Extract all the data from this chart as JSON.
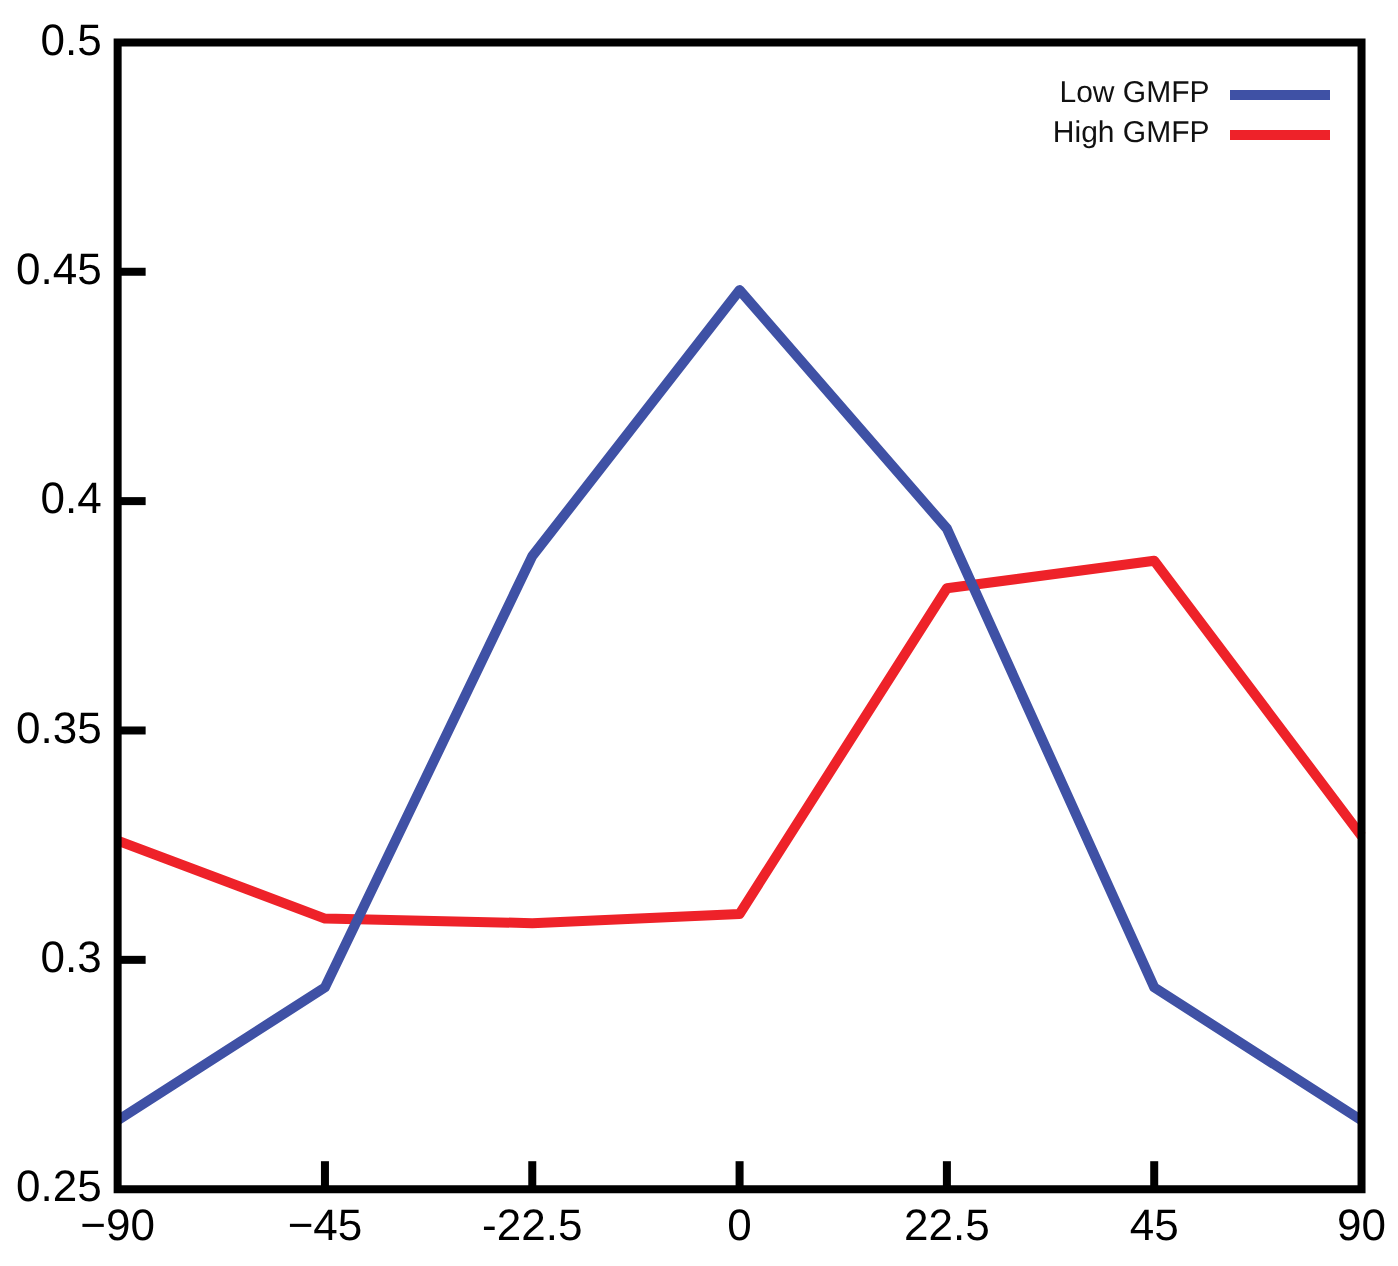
{
  "chart_data": {
    "type": "line",
    "categories": [
      "−90",
      "−45",
      "-22.5",
      "0",
      "22.5",
      "45",
      "90"
    ],
    "series": [
      {
        "name": "Low GMFP",
        "color": "#3f51a5",
        "values": [
          0.265,
          0.294,
          0.388,
          0.446,
          0.394,
          0.294,
          0.265
        ]
      },
      {
        "name": "High GMFP",
        "color": "#ee2229",
        "values": [
          0.326,
          0.309,
          0.308,
          0.31,
          0.381,
          0.387,
          0.327
        ]
      }
    ],
    "ylim": [
      0.25,
      0.5
    ],
    "yticks": [
      0.25,
      0.3,
      0.35,
      0.4,
      0.45,
      0.5
    ],
    "grid": false,
    "legend": "top right",
    "marker": "none",
    "line_style": "solid"
  }
}
